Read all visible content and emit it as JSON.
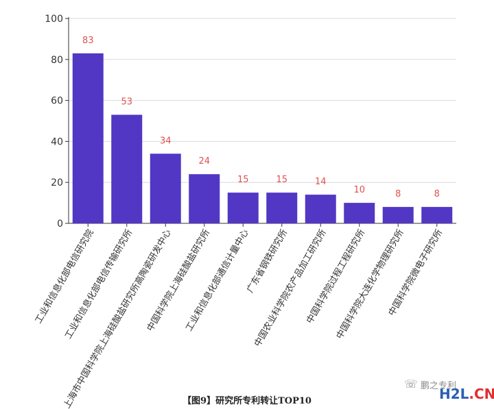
{
  "chart_data": {
    "type": "bar",
    "categories": [
      "工业和信息化部电信研究院",
      "工业和信息化部电信传输研究所",
      "上海市中国科学院上海硅酸盐研究所高陶瓷研发中心",
      "中国科学院上海硅酸盐研究所",
      "工业和信息化部通信计量中心",
      "广东省钢铁研究所",
      "中国农业科学院农产品加工研究所",
      "中国科学院过程工程研究所",
      "中国科学院大连化学物理研究所",
      "中国科学院微电子研究所"
    ],
    "values": [
      83,
      53,
      34,
      24,
      15,
      15,
      14,
      10,
      8,
      8
    ],
    "ylim": [
      0,
      100
    ],
    "yticks": [
      0,
      20,
      40,
      60,
      80,
      100
    ],
    "grid": true,
    "bar_color": "#5237c4",
    "label_color": "#e05050"
  },
  "caption": "【图9】研究所专利转让TOP10",
  "watermark": {
    "icon": "wechat-icon",
    "text": "鹏之专利",
    "logo_part1": "H2L",
    "logo_part2": ".CN"
  }
}
